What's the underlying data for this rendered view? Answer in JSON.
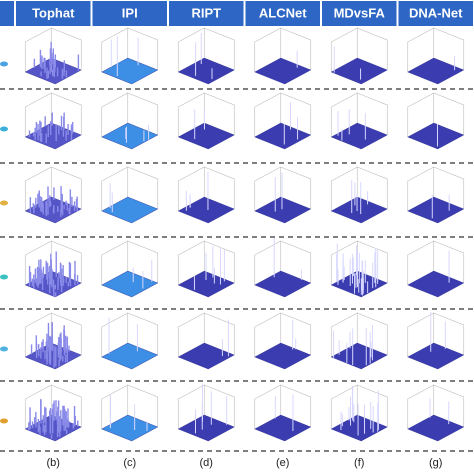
{
  "header": {
    "columns": [
      "Tophat",
      "IPI",
      "RIPT",
      "ALCNet",
      "MDvsFA",
      "DNA-Net"
    ]
  },
  "footer": {
    "labels": [
      "(b)",
      "(c)",
      "(d)",
      "(e)",
      "(f)",
      "(g)"
    ]
  }
}
